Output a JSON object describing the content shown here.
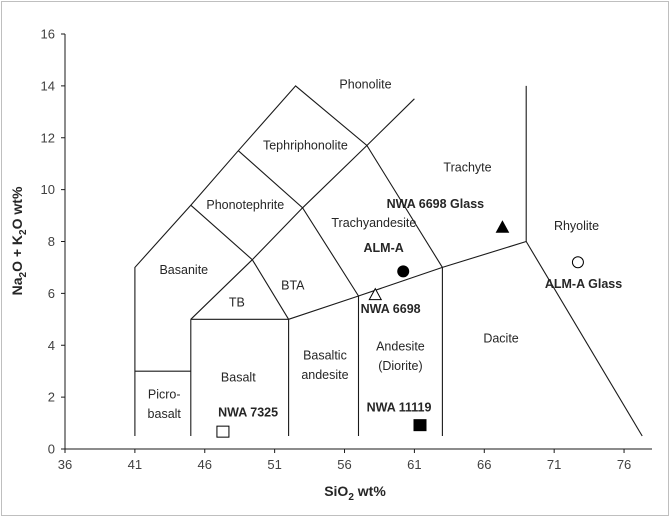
{
  "chart_data": {
    "type": "scatter",
    "xlabel": {
      "main": "SiO",
      "sub": "2",
      "rest": " wt%"
    },
    "ylabel": {
      "p1": "Na",
      "s1": "2",
      "p2": "O + K",
      "s2": "2",
      "p3": "O wt%"
    },
    "xlim": [
      36,
      78
    ],
    "ylim": [
      0,
      16
    ],
    "xticks": [
      36,
      41,
      46,
      51,
      56,
      61,
      66,
      71,
      76
    ],
    "yticks": [
      0,
      2,
      4,
      6,
      8,
      10,
      12,
      14,
      16
    ],
    "grid": false,
    "boundaries": [
      [
        [
          41,
          0.5
        ],
        [
          41,
          7
        ],
        [
          45,
          9.4
        ],
        [
          48.4,
          11.5
        ],
        [
          52.5,
          14
        ],
        [
          57.6,
          11.7
        ],
        [
          63,
          7
        ],
        [
          63,
          0.5
        ]
      ],
      [
        [
          45,
          0.5
        ],
        [
          45,
          5
        ]
      ],
      [
        [
          41,
          3
        ],
        [
          45,
          3
        ]
      ],
      [
        [
          45,
          5
        ],
        [
          49.4,
          7.3
        ],
        [
          53,
          9.3
        ],
        [
          57.6,
          11.7
        ],
        [
          61,
          13.5
        ]
      ],
      [
        [
          45,
          5
        ],
        [
          52,
          5
        ],
        [
          52,
          0.5
        ]
      ],
      [
        [
          52,
          5
        ],
        [
          57,
          5.9
        ],
        [
          63,
          7
        ],
        [
          69,
          8
        ],
        [
          69,
          14
        ]
      ],
      [
        [
          57,
          0.5
        ],
        [
          57,
          5.9
        ]
      ],
      [
        [
          69,
          8
        ],
        [
          77.3,
          0.5
        ]
      ],
      [
        [
          45,
          9.4
        ],
        [
          49.4,
          7.3
        ],
        [
          52,
          5
        ]
      ],
      [
        [
          48.4,
          11.5
        ],
        [
          53,
          9.3
        ],
        [
          57,
          5.9
        ]
      ]
    ],
    "fields": [
      {
        "label": "Phonolite",
        "x": 57.5,
        "y": 13.9
      },
      {
        "label": "Tephriphonolite",
        "x": 53.2,
        "y": 11.55
      },
      {
        "label": "Trachyte",
        "x": 64.8,
        "y": 10.7
      },
      {
        "label": "Phonotephrite",
        "x": 48.9,
        "y": 9.25
      },
      {
        "label": "Trachyandesite",
        "x": 58.1,
        "y": 8.55
      },
      {
        "label": "Rhyolite",
        "x": 72.6,
        "y": 8.45
      },
      {
        "label": "Basanite",
        "x": 44.5,
        "y": 6.75
      },
      {
        "label": "BTA",
        "x": 52.3,
        "y": 6.15
      },
      {
        "label": "TB",
        "x": 48.3,
        "y": 5.5
      },
      {
        "label": "Andesite",
        "x": 60,
        "y": 3.8
      },
      {
        "label": "(Diorite)",
        "x": 60,
        "y": 3.05
      },
      {
        "label": "Dacite",
        "x": 67.2,
        "y": 4.1
      },
      {
        "label": "Basalt",
        "x": 48.4,
        "y": 2.6
      },
      {
        "label": "Basaltic",
        "x": 54.6,
        "y": 3.45
      },
      {
        "label": "andesite",
        "x": 54.6,
        "y": 2.7
      },
      {
        "label": "Picro-",
        "x": 43.1,
        "y": 1.95
      },
      {
        "label": "basalt",
        "x": 43.1,
        "y": 1.2
      }
    ],
    "samples": [
      {
        "name": "NWA 6698 Glass",
        "x": 67.3,
        "y": 8.55,
        "marker": "triangle",
        "filled": true,
        "label_x": 62.5,
        "label_y": 9.3
      },
      {
        "name": "ALM-A",
        "x": 60.2,
        "y": 6.85,
        "marker": "circle",
        "filled": true,
        "label_x": 58.8,
        "label_y": 7.6
      },
      {
        "name": "ALM-A Glass",
        "x": 72.7,
        "y": 7.2,
        "marker": "circle",
        "filled": false,
        "label_x": 73.1,
        "label_y": 6.2
      },
      {
        "name": "NWA 6698",
        "x": 58.2,
        "y": 5.95,
        "marker": "triangle",
        "filled": false,
        "label_x": 59.3,
        "label_y": 5.25
      },
      {
        "name": "NWA 7325",
        "x": 47.3,
        "y": 0.65,
        "marker": "square",
        "filled": false,
        "label_x": 49.1,
        "label_y": 1.25
      },
      {
        "name": "NWA 11119",
        "x": 61.4,
        "y": 0.9,
        "marker": "square",
        "filled": true,
        "label_x": 59.9,
        "label_y": 1.45
      }
    ]
  }
}
